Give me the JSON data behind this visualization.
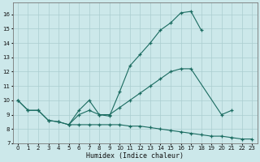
{
  "xlabel": "Humidex (Indice chaleur)",
  "bg_color": "#cce8ea",
  "line_color": "#1a6b60",
  "grid_color": "#aacdd0",
  "xlim": [
    -0.5,
    23.5
  ],
  "ylim": [
    7,
    16.8
  ],
  "yticks": [
    7,
    8,
    9,
    10,
    11,
    12,
    13,
    14,
    15,
    16
  ],
  "xticks": [
    0,
    1,
    2,
    3,
    4,
    5,
    6,
    7,
    8,
    9,
    10,
    11,
    12,
    13,
    14,
    15,
    16,
    17,
    18,
    19,
    20,
    21,
    22,
    23
  ],
  "line1_x": [
    0,
    1,
    2,
    3,
    4,
    5,
    6,
    7,
    8,
    9,
    10,
    11,
    12,
    13,
    14,
    15,
    16,
    17,
    18
  ],
  "line1_y": [
    10.0,
    9.3,
    9.3,
    8.6,
    8.5,
    8.3,
    9.3,
    10.0,
    9.0,
    8.9,
    10.6,
    12.4,
    13.2,
    14.0,
    14.9,
    15.4,
    16.1,
    16.2,
    14.9
  ],
  "line2_x": [
    0,
    1,
    2,
    3,
    4,
    5,
    6,
    7,
    8,
    9,
    10,
    11,
    12,
    13,
    14,
    15,
    16,
    17,
    20,
    21
  ],
  "line2_y": [
    10.0,
    9.3,
    9.3,
    8.6,
    8.5,
    8.3,
    9.0,
    9.3,
    9.0,
    9.0,
    9.5,
    10.0,
    10.5,
    11.0,
    11.5,
    12.0,
    12.2,
    12.2,
    9.0,
    9.3
  ],
  "line3_x": [
    5,
    6,
    7,
    8,
    9,
    10,
    11,
    12,
    13,
    14,
    15,
    16,
    17,
    18,
    19,
    20,
    21,
    22,
    23
  ],
  "line3_y": [
    8.3,
    8.3,
    8.3,
    8.3,
    8.3,
    8.3,
    8.2,
    8.2,
    8.1,
    8.0,
    7.9,
    7.8,
    7.7,
    7.6,
    7.5,
    7.5,
    7.4,
    7.3,
    7.3
  ]
}
